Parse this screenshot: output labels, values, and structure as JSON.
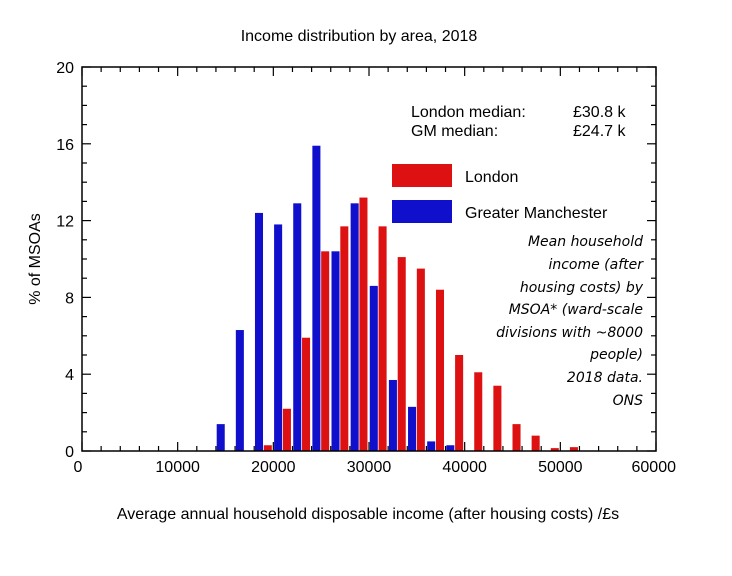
{
  "chart_data": {
    "type": "bar",
    "title": "Income distribution by area, 2018",
    "xlabel": "Average annual household disposable income (after housing costs) /£s",
    "ylabel": "% of MSOAs",
    "xlim": [
      0,
      60000
    ],
    "ylim": [
      0,
      20
    ],
    "xticks": [
      0,
      10000,
      20000,
      30000,
      40000,
      50000,
      60000
    ],
    "xtick_labels": [
      "0",
      "10000",
      "20000",
      "30000",
      "40000",
      "50000",
      "60000"
    ],
    "yticks": [
      0,
      4,
      8,
      12,
      16,
      20
    ],
    "ytick_labels": [
      "0",
      "4",
      "8",
      "12",
      "16",
      "20"
    ],
    "bin_width": 2000,
    "series": [
      {
        "name": "London",
        "color": "#dd1111",
        "bins": [
          18000,
          20000,
          22000,
          24000,
          26000,
          28000,
          30000,
          32000,
          34000,
          36000,
          38000,
          40000,
          42000,
          44000,
          46000,
          48000,
          50000
        ],
        "values": [
          0.3,
          2.2,
          5.9,
          10.4,
          11.7,
          13.2,
          11.7,
          10.1,
          9.5,
          8.4,
          5.0,
          4.1,
          3.4,
          1.4,
          0.8,
          0.15,
          0.2
        ]
      },
      {
        "name": "Greater Manchester",
        "color": "#1010cc",
        "bins": [
          14000,
          16000,
          18000,
          20000,
          22000,
          24000,
          26000,
          28000,
          30000,
          32000,
          34000,
          36000,
          38000
        ],
        "values": [
          1.4,
          6.3,
          12.4,
          11.8,
          12.9,
          15.9,
          10.4,
          12.9,
          8.6,
          3.7,
          2.3,
          0.5,
          0.3
        ]
      }
    ],
    "legend_position": "upper-right",
    "annotations": {
      "london_median_label": "London median:",
      "london_median_value": "£30.8 k",
      "gm_median_label": "GM median:",
      "gm_median_value": "£24.7 k",
      "note_lines": [
        "Mean household",
        "income (after",
        "housing costs) by",
        "MSOA* (ward-scale",
        "divisions with ~8000",
        "people)",
        "2018 data.",
        "ONS"
      ]
    }
  }
}
